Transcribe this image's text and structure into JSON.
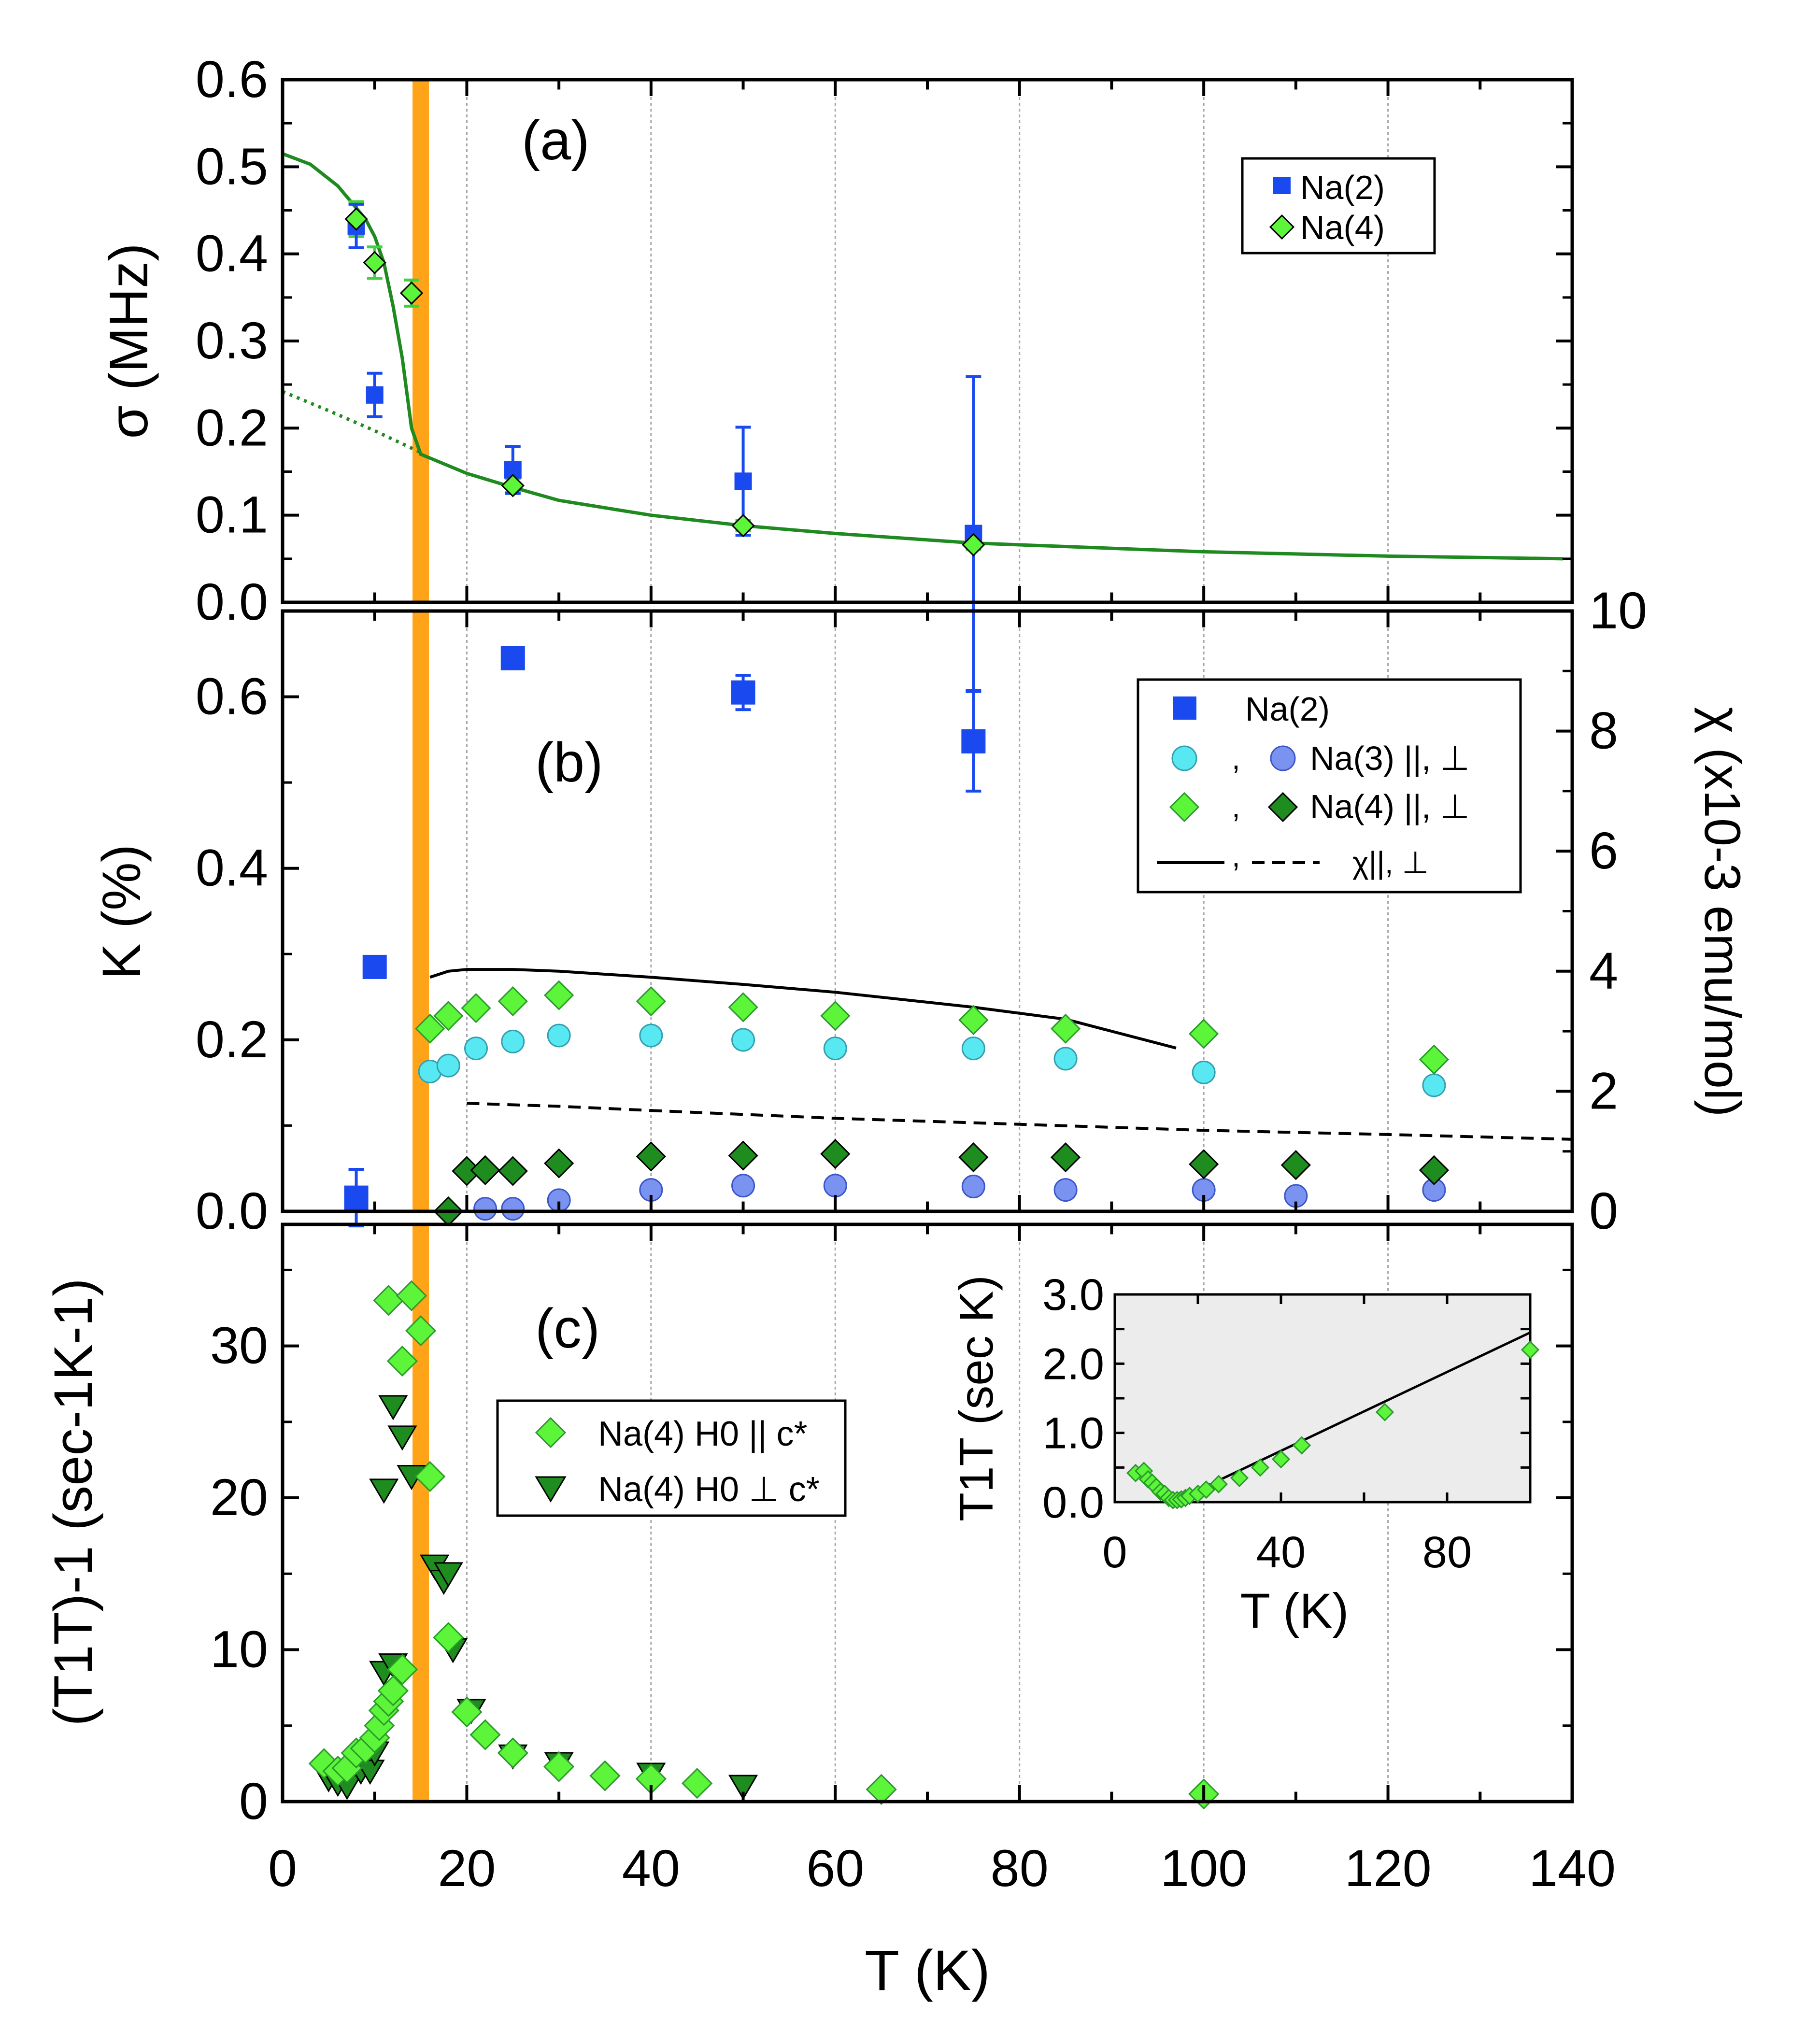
{
  "colors": {
    "na2": "#1a49f0",
    "na4_light": "#5cf53a",
    "na4_dark": "#1e8c1e",
    "na3_par": "#57e8f2",
    "na3_perp": "#7b93f0",
    "tc_band": "#ffa319",
    "fit_line": "#1f8a1f",
    "inset_bg": "#ececec",
    "grid": "#a6a6a6"
  },
  "chart_data": [
    {
      "type": "scatter",
      "panel_label": "(a)",
      "ylabel": "σ (MHz)",
      "xlim": [
        0,
        140
      ],
      "ylim": [
        0,
        0.6
      ],
      "yticks": [
        "0.0",
        "0.1",
        "0.2",
        "0.3",
        "0.4",
        "0.5",
        "0.6"
      ],
      "grid_x": [
        20,
        40,
        60,
        80,
        100,
        120
      ],
      "legend": [
        {
          "label": "Na(2)",
          "marker": "square"
        },
        {
          "label": "Na(4)",
          "marker": "diamond"
        }
      ],
      "series": [
        {
          "name": "Na(2)",
          "marker": "square",
          "points": [
            [
              8,
              0.432
            ],
            [
              10,
              0.238
            ],
            [
              25,
              0.152
            ],
            [
              50,
              0.139
            ],
            [
              75,
              0.079
            ]
          ],
          "errors": [
            0.025,
            0.025,
            0.027,
            0.062,
            0.18
          ]
        },
        {
          "name": "Na(4)",
          "marker": "diamond",
          "points": [
            [
              8,
              0.44
            ],
            [
              10,
              0.39
            ],
            [
              14,
              0.355
            ],
            [
              25,
              0.134
            ],
            [
              50,
              0.088
            ],
            [
              75,
              0.066
            ]
          ],
          "errors": [
            0.02,
            0.018,
            0.015,
            0.008,
            0.006,
            0.005
          ]
        }
      ],
      "fit_solid": [
        [
          0,
          0.515
        ],
        [
          3,
          0.503
        ],
        [
          6,
          0.478
        ],
        [
          9,
          0.44
        ],
        [
          10,
          0.42
        ],
        [
          11,
          0.39
        ],
        [
          12,
          0.34
        ],
        [
          13,
          0.28
        ],
        [
          14,
          0.2
        ],
        [
          15,
          0.17
        ],
        [
          20,
          0.148
        ],
        [
          25,
          0.132
        ],
        [
          30,
          0.117
        ],
        [
          40,
          0.1
        ],
        [
          50,
          0.088
        ],
        [
          60,
          0.079
        ],
        [
          75,
          0.068
        ],
        [
          100,
          0.058
        ],
        [
          120,
          0.053
        ],
        [
          139,
          0.05
        ]
      ],
      "fit_dotted": [
        [
          0,
          0.242
        ],
        [
          5,
          0.22
        ],
        [
          10,
          0.197
        ],
        [
          15,
          0.172
        ]
      ]
    },
    {
      "type": "scatter",
      "panel_label": "(b)",
      "ylabel": "K (%)",
      "ylabel_right": "χ (x10-3 emu/mol)",
      "xlim": [
        0,
        140
      ],
      "ylim": [
        0,
        0.7
      ],
      "yticks": [
        "0.0",
        "0.2",
        "0.4",
        "0.6"
      ],
      "ylim_right": [
        0,
        10
      ],
      "yticks_right": [
        "0",
        "2",
        "4",
        "6",
        "8",
        "10"
      ],
      "grid_x": [
        20,
        40,
        60,
        80,
        100,
        120
      ],
      "legend": [
        {
          "label": "Na(2)"
        },
        {
          "label": "Na(3) ||, ⊥"
        },
        {
          "label": "Na(4) ||, ⊥"
        },
        {
          "label": "χ||, ⊥"
        }
      ],
      "series": [
        {
          "name": "Na(2)",
          "marker": "square",
          "points": [
            [
              8,
              0.016
            ],
            [
              10,
              0.285
            ],
            [
              25,
              0.645
            ],
            [
              50,
              0.605
            ],
            [
              75,
              0.548
            ]
          ],
          "errors": [
            0.033,
            0,
            0,
            0.02,
            0.058
          ]
        },
        {
          "name": "Na(3) ||",
          "marker": "circle-cyan",
          "points": [
            [
              16,
              0.163
            ],
            [
              18,
              0.17
            ],
            [
              21,
              0.19
            ],
            [
              25,
              0.198
            ],
            [
              30,
              0.205
            ],
            [
              40,
              0.205
            ],
            [
              50,
              0.2
            ],
            [
              60,
              0.19
            ],
            [
              75,
              0.19
            ],
            [
              85,
              0.178
            ],
            [
              100,
              0.162
            ],
            [
              125,
              0.147
            ]
          ]
        },
        {
          "name": "Na(3) ⊥",
          "marker": "circle-blue",
          "points": [
            [
              22,
              0.003
            ],
            [
              25,
              0.003
            ],
            [
              30,
              0.013
            ],
            [
              40,
              0.025
            ],
            [
              50,
              0.03
            ],
            [
              60,
              0.03
            ],
            [
              75,
              0.029
            ],
            [
              85,
              0.025
            ],
            [
              100,
              0.025
            ],
            [
              110,
              0.018
            ],
            [
              125,
              0.025
            ]
          ]
        },
        {
          "name": "Na(4) ||",
          "marker": "diamond-light",
          "points": [
            [
              16,
              0.213
            ],
            [
              18,
              0.228
            ],
            [
              21,
              0.237
            ],
            [
              25,
              0.245
            ],
            [
              30,
              0.252
            ],
            [
              40,
              0.245
            ],
            [
              50,
              0.238
            ],
            [
              60,
              0.228
            ],
            [
              75,
              0.223
            ],
            [
              85,
              0.213
            ],
            [
              100,
              0.207
            ],
            [
              125,
              0.177
            ]
          ]
        },
        {
          "name": "Na(4) ⊥",
          "marker": "diamond-dark",
          "points": [
            [
              18,
              0.0
            ],
            [
              20,
              0.047
            ],
            [
              22,
              0.048
            ],
            [
              25,
              0.047
            ],
            [
              30,
              0.056
            ],
            [
              40,
              0.064
            ],
            [
              50,
              0.065
            ],
            [
              60,
              0.067
            ],
            [
              75,
              0.063
            ],
            [
              85,
              0.063
            ],
            [
              100,
              0.055
            ],
            [
              110,
              0.054
            ],
            [
              125,
              0.048
            ]
          ]
        }
      ],
      "chi_parallel": [
        [
          16,
          3.9
        ],
        [
          18,
          4.0
        ],
        [
          20,
          4.03
        ],
        [
          25,
          4.03
        ],
        [
          30,
          4.0
        ],
        [
          40,
          3.9
        ],
        [
          50,
          3.78
        ],
        [
          60,
          3.65
        ],
        [
          75,
          3.4
        ],
        [
          85,
          3.2
        ],
        [
          97,
          2.72
        ]
      ],
      "chi_perp": [
        [
          20,
          1.8
        ],
        [
          30,
          1.75
        ],
        [
          40,
          1.68
        ],
        [
          60,
          1.55
        ],
        [
          80,
          1.45
        ],
        [
          100,
          1.35
        ],
        [
          120,
          1.28
        ],
        [
          140,
          1.2
        ]
      ]
    },
    {
      "type": "scatter",
      "panel_label": "(c)",
      "ylabel": "(T1T)-1 (sec-1K-1)",
      "xlabel": "T (K)",
      "xlim": [
        0,
        140
      ],
      "xticks": [
        "0",
        "20",
        "40",
        "60",
        "80",
        "100",
        "120",
        "140"
      ],
      "ylim": [
        0,
        38
      ],
      "yticks": [
        "0",
        "10",
        "20",
        "30"
      ],
      "grid_x": [
        20,
        40,
        60,
        80,
        100,
        120
      ],
      "legend": [
        {
          "label": "Na(4) H0 || c*",
          "marker": "diamond"
        },
        {
          "label": "Na(4) H0 ⊥ c*",
          "marker": "triangle-down"
        }
      ],
      "series": [
        {
          "name": "Na(4) H0 || c*",
          "marker": "diamond",
          "points": [
            [
              4.5,
              2.5
            ],
            [
              6,
              2.0
            ],
            [
              7,
              2.2
            ],
            [
              8,
              3.2
            ],
            [
              9,
              3.5
            ],
            [
              10,
              4.2
            ],
            [
              10.5,
              5.0
            ],
            [
              11,
              6.0
            ],
            [
              11.5,
              6.6
            ],
            [
              12,
              7.3
            ],
            [
              13,
              8.7
            ],
            [
              11.5,
              33.0
            ],
            [
              13,
              29.0
            ],
            [
              14,
              33.3
            ],
            [
              15,
              31.0
            ],
            [
              16,
              21.4
            ],
            [
              18,
              10.8
            ],
            [
              20,
              5.9
            ],
            [
              22,
              4.4
            ],
            [
              25,
              3.2
            ],
            [
              30,
              2.3
            ],
            [
              35,
              1.7
            ],
            [
              40,
              1.5
            ],
            [
              45,
              1.2
            ],
            [
              65,
              0.8
            ],
            [
              100,
              0.5
            ]
          ]
        },
        {
          "name": "Na(4) H0 ⊥ c*",
          "marker": "triangle-down",
          "points": [
            [
              5,
              1.5
            ],
            [
              6,
              1.2
            ],
            [
              7,
              1.0
            ],
            [
              8.5,
              2.0
            ],
            [
              9.5,
              2.0
            ],
            [
              10,
              3.2
            ],
            [
              11,
              8.5
            ],
            [
              12,
              9.0
            ],
            [
              11,
              20.5
            ],
            [
              12,
              26.0
            ],
            [
              13,
              24.0
            ],
            [
              14,
              21.4
            ],
            [
              16.5,
              15.5
            ],
            [
              17.5,
              14.5
            ],
            [
              18,
              15.0
            ],
            [
              18.5,
              10.0
            ],
            [
              20.5,
              6.0
            ],
            [
              25,
              3.0
            ],
            [
              30,
              2.5
            ],
            [
              40,
              1.8
            ],
            [
              50,
              1.0
            ]
          ]
        }
      ],
      "inset": {
        "xlabel": "T (K)",
        "ylabel": "T1T (sec K)",
        "xlim": [
          0,
          100
        ],
        "xticks": [
          "0",
          "40",
          "80"
        ],
        "ylim": [
          0,
          3.0
        ],
        "yticks": [
          "0.0",
          "1.0",
          "2.0",
          "3.0"
        ],
        "points": [
          [
            5,
            0.42
          ],
          [
            7,
            0.45
          ],
          [
            8,
            0.33
          ],
          [
            9,
            0.28
          ],
          [
            10,
            0.22
          ],
          [
            11,
            0.15
          ],
          [
            12,
            0.12
          ],
          [
            13,
            0.06
          ],
          [
            14,
            0.03
          ],
          [
            15,
            0.03
          ],
          [
            16,
            0.04
          ],
          [
            17,
            0.06
          ],
          [
            18,
            0.09
          ],
          [
            20,
            0.12
          ],
          [
            22,
            0.18
          ],
          [
            25,
            0.26
          ],
          [
            30,
            0.35
          ],
          [
            35,
            0.5
          ],
          [
            40,
            0.62
          ],
          [
            45,
            0.82
          ],
          [
            65,
            1.3
          ],
          [
            100,
            2.2
          ]
        ],
        "fit": [
          [
            14,
            0.0
          ],
          [
            100,
            2.45
          ]
        ]
      }
    }
  ]
}
